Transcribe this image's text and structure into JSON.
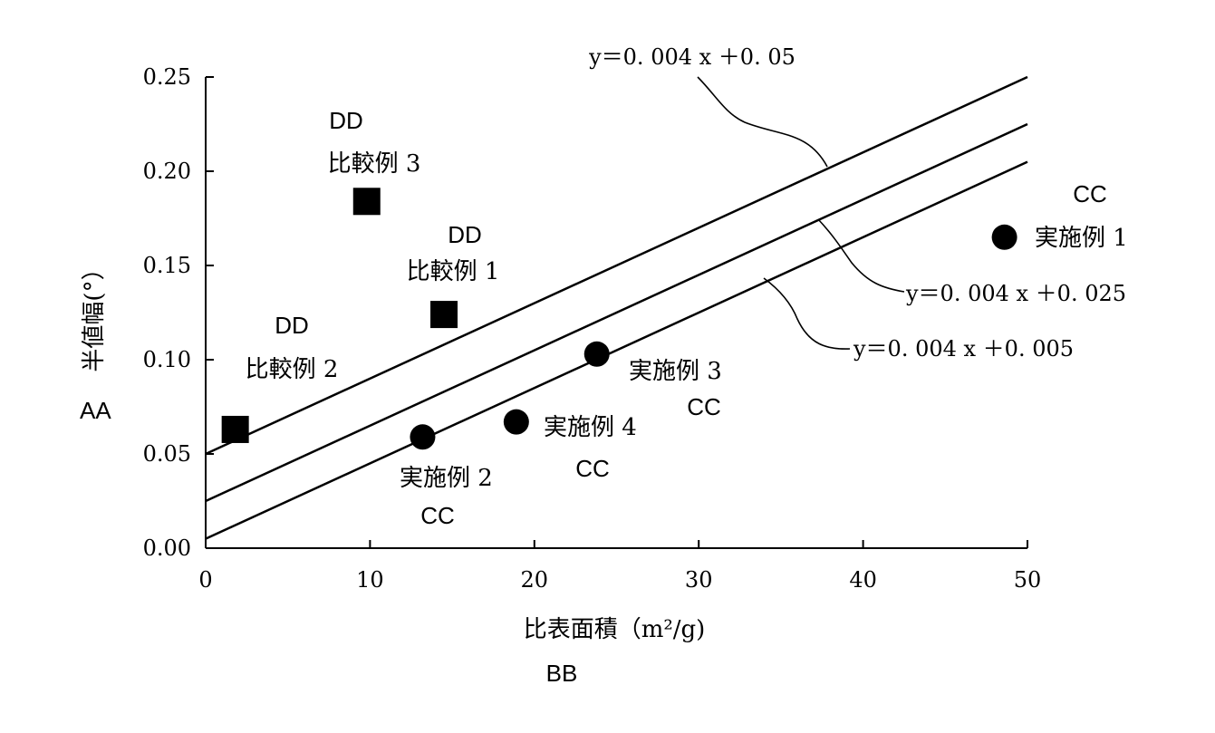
{
  "chart_data": {
    "type": "scatter",
    "xlim": [
      0,
      50
    ],
    "ylim": [
      0,
      0.25
    ],
    "x_ticks": [
      "0",
      "10",
      "20",
      "30",
      "40",
      "50"
    ],
    "y_ticks": [
      "0.00",
      "0.05",
      "0.10",
      "0.15",
      "0.20",
      "0.25"
    ],
    "xlabel": "比表面積（m²/g)",
    "xlabel_code": "BB",
    "ylabel": "半値幅(°）",
    "ylabel_code": "AA",
    "series": [
      {
        "marker": "square",
        "code": "DD",
        "points": [
          {
            "label": "比較例 1",
            "x": 14.5,
            "y": 0.124
          },
          {
            "label": "比較例 2",
            "x": 1.8,
            "y": 0.063
          },
          {
            "label": "比較例 3",
            "x": 9.8,
            "y": 0.184
          }
        ]
      },
      {
        "marker": "circle",
        "code": "CC",
        "points": [
          {
            "label": "実施例 1",
            "x": 48.6,
            "y": 0.165
          },
          {
            "label": "実施例 2",
            "x": 13.2,
            "y": 0.059
          },
          {
            "label": "実施例 3",
            "x": 23.8,
            "y": 0.103
          },
          {
            "label": "実施例 4",
            "x": 18.9,
            "y": 0.067
          }
        ]
      }
    ],
    "lines": [
      {
        "label": "y＝0. 004 x ＋0. 05",
        "slope": 0.004,
        "intercept": 0.05
      },
      {
        "label": "y＝0. 004 x ＋0. 025",
        "slope": 0.004,
        "intercept": 0.025
      },
      {
        "label": "y＝0. 004 x ＋0. 005",
        "slope": 0.004,
        "intercept": 0.005
      }
    ],
    "grid": false,
    "legend": "none"
  }
}
